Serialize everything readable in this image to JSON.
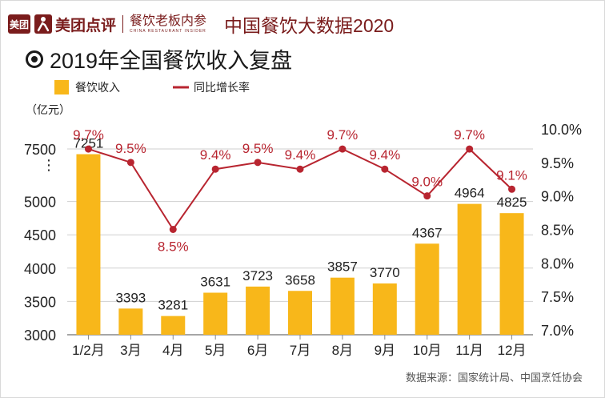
{
  "header": {
    "logo_text": "美团",
    "brand": "美团点评",
    "sub_brand": "餐饮老板内参",
    "sub_brand_en": "CHINA RESTAURANT INSIDER",
    "report_title": "中国餐饮大数据2020"
  },
  "title": "2019年全国餐饮收入复盘",
  "source": "数据来源：国家统计局、中国烹饪协会",
  "colors": {
    "bar": "#f8b71a",
    "line": "#b82530",
    "text": "#222222"
  },
  "chart_data": {
    "type": "bar",
    "title": "2019年全国餐饮收入复盘",
    "categories": [
      "1/2月",
      "3月",
      "4月",
      "5月",
      "6月",
      "7月",
      "8月",
      "9月",
      "10月",
      "11月",
      "12月"
    ],
    "series": [
      {
        "name": "餐饮收入",
        "type": "bar",
        "axis": "left",
        "values": [
          7251,
          3393,
          3281,
          3631,
          3723,
          3658,
          3857,
          3770,
          4367,
          4964,
          4825
        ],
        "labels": [
          "7251",
          "3393",
          "3281",
          "3631",
          "3723",
          "3658",
          "3857",
          "3770",
          "4367",
          "4964",
          "4825"
        ]
      },
      {
        "name": "同比增长率",
        "type": "line",
        "axis": "right",
        "values": [
          9.7,
          9.5,
          8.5,
          9.4,
          9.5,
          9.4,
          9.7,
          9.4,
          9.0,
          9.7,
          9.1
        ],
        "labels": [
          "9.7%",
          "9.5%",
          "8.5%",
          "9.4%",
          "9.5%",
          "9.4%",
          "9.7%",
          "9.4%",
          "9.0%",
          "9.7%",
          "9.1%"
        ]
      }
    ],
    "y_left": {
      "unit_label": "（亿元）",
      "ticks": [
        "3000",
        "3500",
        "4000",
        "4500",
        "5000",
        "7500"
      ],
      "axis_break": "⋮"
    },
    "y_right": {
      "ticks": [
        "7.0%",
        "7.5%",
        "8.0%",
        "8.5%",
        "9.0%",
        "9.5%",
        "10.0%"
      ],
      "range": [
        7.0,
        10.0
      ]
    },
    "legend": {
      "position": "top-left"
    }
  }
}
